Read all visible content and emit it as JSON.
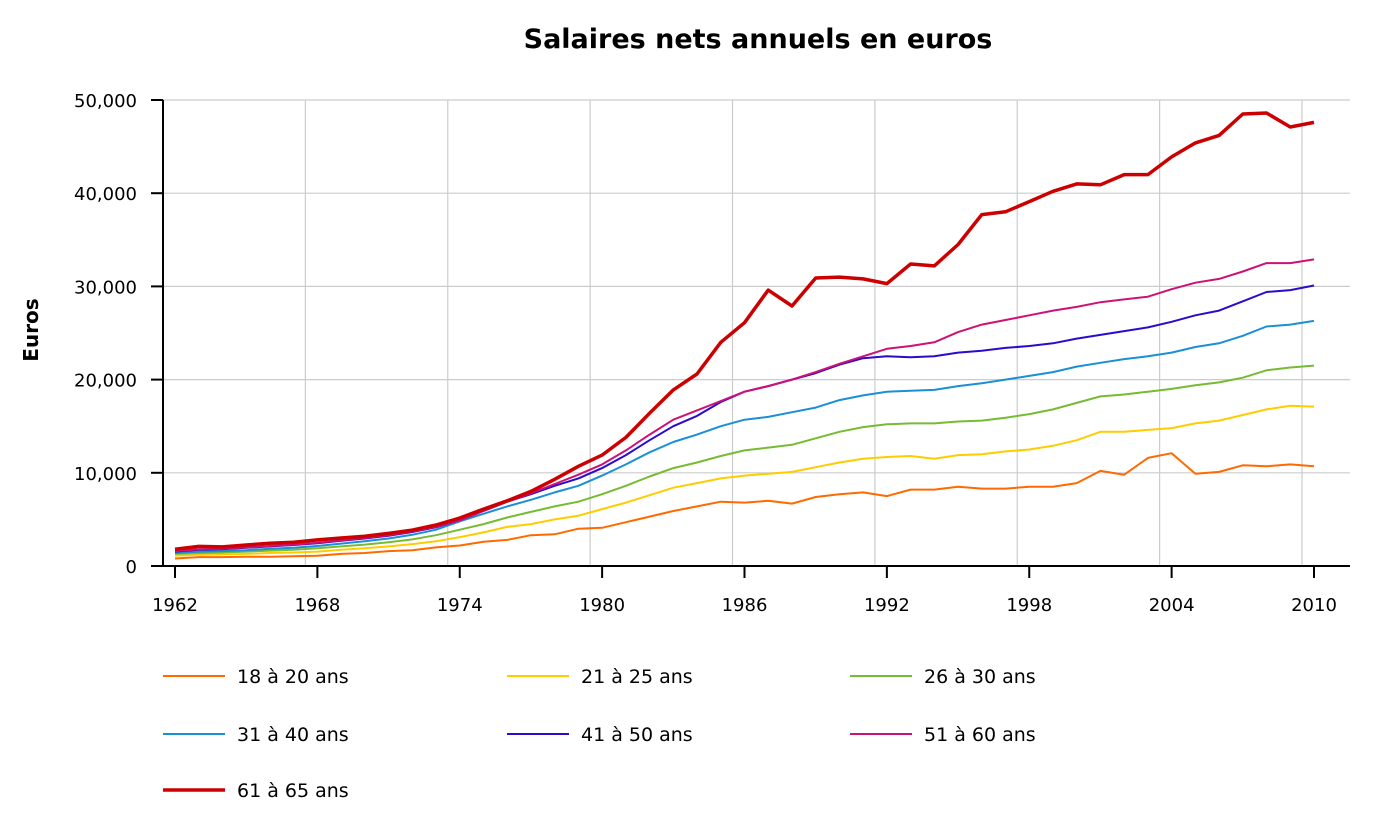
{
  "chart_data": {
    "type": "line",
    "title": "Salaires nets annuels en euros",
    "xlabel": "",
    "ylabel": "Euros",
    "xlim": [
      1962,
      2010
    ],
    "ylim": [
      0,
      50000
    ],
    "x_ticks": [
      1962,
      1968,
      1974,
      1980,
      1986,
      1992,
      1998,
      2004,
      2010
    ],
    "y_ticks": [
      0,
      10000,
      20000,
      30000,
      40000,
      50000
    ],
    "y_tick_labels": [
      "0",
      "10,000",
      "20,000",
      "30,000",
      "40,000",
      "50,000"
    ],
    "grid": true,
    "legend_position": "bottom",
    "x": [
      1962,
      1963,
      1964,
      1965,
      1966,
      1967,
      1968,
      1969,
      1970,
      1971,
      1972,
      1973,
      1974,
      1975,
      1976,
      1977,
      1978,
      1979,
      1980,
      1981,
      1982,
      1983,
      1984,
      1985,
      1986,
      1987,
      1988,
      1989,
      1990,
      1991,
      1992,
      1993,
      1994,
      1995,
      1996,
      1997,
      1998,
      1999,
      2000,
      2001,
      2002,
      2003,
      2004,
      2005,
      2006,
      2007,
      2008,
      2009,
      2010
    ],
    "series": [
      {
        "name": "18 à 20 ans",
        "color": "#ff6a00",
        "values": [
          800,
          950,
          950,
          1000,
          1000,
          1050,
          1100,
          1300,
          1400,
          1600,
          1700,
          2000,
          2200,
          2600,
          2800,
          3300,
          3400,
          4000,
          4100,
          4700,
          5300,
          5900,
          6400,
          6900,
          6800,
          7000,
          6700,
          7400,
          7700,
          7900,
          7500,
          8200,
          8200,
          8500,
          8300,
          8300,
          8500,
          8500,
          8900,
          10200,
          9800,
          11600,
          12100,
          9900,
          10100,
          10800,
          10700,
          10900,
          10700
        ]
      },
      {
        "name": "21 à 25 ans",
        "color": "#ffcc00",
        "values": [
          1100,
          1200,
          1250,
          1300,
          1400,
          1450,
          1550,
          1750,
          1900,
          2100,
          2350,
          2650,
          3100,
          3600,
          4200,
          4500,
          5000,
          5400,
          6100,
          6800,
          7600,
          8400,
          8900,
          9400,
          9700,
          9900,
          10100,
          10600,
          11100,
          11500,
          11700,
          11800,
          11500,
          11900,
          12000,
          12300,
          12500,
          12900,
          13500,
          14400,
          14400,
          14600,
          14800,
          15300,
          15600,
          16200,
          16800,
          17200,
          17100
        ]
      },
      {
        "name": "26 à 30 ans",
        "color": "#77bb33",
        "values": [
          1300,
          1400,
          1450,
          1550,
          1650,
          1750,
          1900,
          2100,
          2300,
          2550,
          2850,
          3300,
          3900,
          4500,
          5200,
          5800,
          6400,
          6900,
          7700,
          8600,
          9600,
          10500,
          11100,
          11800,
          12400,
          12700,
          13000,
          13700,
          14400,
          14900,
          15200,
          15300,
          15300,
          15500,
          15600,
          15900,
          16300,
          16800,
          17500,
          18200,
          18400,
          18700,
          19000,
          19400,
          19700,
          20200,
          21000,
          21300,
          21500
        ]
      },
      {
        "name": "31 à 40 ans",
        "color": "#1a8fd6",
        "values": [
          1400,
          1550,
          1600,
          1700,
          1850,
          1950,
          2150,
          2400,
          2650,
          2950,
          3350,
          3900,
          4800,
          5600,
          6400,
          7100,
          7900,
          8600,
          9700,
          10900,
          12200,
          13300,
          14100,
          15000,
          15700,
          16000,
          16500,
          17000,
          17800,
          18300,
          18700,
          18800,
          18900,
          19300,
          19600,
          20000,
          20400,
          20800,
          21400,
          21800,
          22200,
          22500,
          22900,
          23500,
          23900,
          24700,
          25700,
          25900,
          26300
        ]
      },
      {
        "name": "41 à 50 ans",
        "color": "#2a0acc",
        "values": [
          1550,
          1750,
          1800,
          1950,
          2100,
          2250,
          2450,
          2700,
          2950,
          3250,
          3650,
          4150,
          4900,
          5900,
          6900,
          7700,
          8600,
          9400,
          10500,
          11900,
          13500,
          15000,
          16100,
          17600,
          18700,
          19300,
          20000,
          20700,
          21600,
          22300,
          22500,
          22400,
          22500,
          22900,
          23100,
          23400,
          23600,
          23900,
          24400,
          24800,
          25200,
          25600,
          26200,
          26900,
          27400,
          28400,
          29400,
          29600,
          30100
        ]
      },
      {
        "name": "51 à 60 ans",
        "color": "#cc1177",
        "values": [
          1600,
          1800,
          1850,
          2000,
          2150,
          2300,
          2500,
          2750,
          3000,
          3300,
          3700,
          4200,
          4900,
          5900,
          6900,
          7800,
          8800,
          9800,
          10900,
          12400,
          14100,
          15700,
          16700,
          17700,
          18700,
          19300,
          20000,
          20800,
          21700,
          22500,
          23300,
          23600,
          24000,
          25100,
          25900,
          26400,
          26900,
          27400,
          27800,
          28300,
          28600,
          28900,
          29700,
          30400,
          30800,
          31600,
          32500,
          32500,
          32900
        ]
      },
      {
        "name": "61 à 65 ans",
        "color": "#cc0000",
        "values": [
          1800,
          2100,
          2050,
          2250,
          2450,
          2550,
          2800,
          3000,
          3200,
          3500,
          3850,
          4400,
          5150,
          6100,
          7000,
          8000,
          9300,
          10700,
          11900,
          13800,
          16400,
          18900,
          20600,
          24000,
          26100,
          29600,
          27900,
          30900,
          31000,
          30800,
          30300,
          32400,
          32200,
          34500,
          37700,
          38000,
          39100,
          40200,
          41000,
          40900,
          42000,
          42000,
          43900,
          45400,
          46200,
          48500,
          48600,
          47100,
          47600
        ]
      }
    ]
  }
}
